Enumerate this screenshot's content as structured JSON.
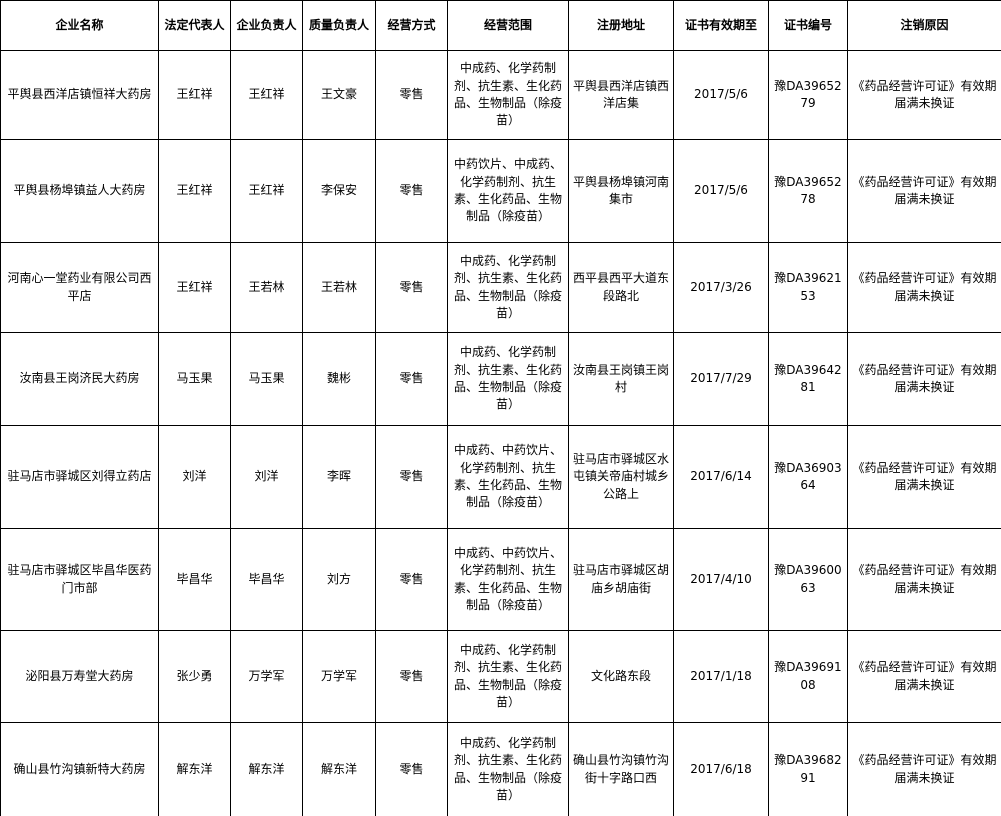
{
  "colors": {
    "border": "#000000",
    "background": "#ffffff",
    "text": "#000000"
  },
  "table": {
    "headers": [
      "企业名称",
      "法定代表人",
      "企业负责人",
      "质量负责人",
      "经营方式",
      "经营范围",
      "注册地址",
      "证书有效期至",
      "证书编号",
      "注销原因"
    ],
    "rows": [
      [
        "平舆县西洋店镇恒祥大药房",
        "王红祥",
        "王红祥",
        "王文豪",
        "零售",
        "中成药、化学药制剂、抗生素、生化药品、生物制品（除疫苗）",
        "平舆县西洋店镇西洋店集",
        "2017/5/6",
        "豫DA3965279",
        "《药品经营许可证》有效期届满未换证"
      ],
      [
        "平舆县杨埠镇益人大药房",
        "王红祥",
        "王红祥",
        "李保安",
        "零售",
        "中药饮片、中成药、化学药制剂、抗生素、生化药品、生物制品（除疫苗）",
        "平舆县杨埠镇河南集市",
        "2017/5/6",
        "豫DA3965278",
        "《药品经营许可证》有效期届满未换证"
      ],
      [
        "河南心一堂药业有限公司西平店",
        "王红祥",
        "王若林",
        "王若林",
        "零售",
        "中成药、化学药制剂、抗生素、生化药品、生物制品（除疫苗）",
        "西平县西平大道东段路北",
        "2017/3/26",
        "豫DA3962153",
        "《药品经营许可证》有效期届满未换证"
      ],
      [
        "汝南县王岗济民大药房",
        "马玉果",
        "马玉果",
        "魏彬",
        "零售",
        "中成药、化学药制剂、抗生素、生化药品、生物制品（除疫苗）",
        "汝南县王岗镇王岗村",
        "2017/7/29",
        "豫DA3964281",
        "《药品经营许可证》有效期届满未换证"
      ],
      [
        "驻马店市驿城区刘得立药店",
        "刘洋",
        "刘洋",
        "李晖",
        "零售",
        "中成药、中药饮片、化学药制剂、抗生素、生化药品、生物制品（除疫苗）",
        "驻马店市驿城区水屯镇关帝庙村城乡公路上",
        "2017/6/14",
        "豫DA3690364",
        "《药品经营许可证》有效期届满未换证"
      ],
      [
        "驻马店市驿城区毕昌华医药门市部",
        "毕昌华",
        "毕昌华",
        "刘方",
        "零售",
        "中成药、中药饮片、化学药制剂、抗生素、生化药品、生物制品（除疫苗）",
        "驻马店市驿城区胡庙乡胡庙街",
        "2017/4/10",
        "豫DA3960063",
        "《药品经营许可证》有效期届满未换证"
      ],
      [
        "泌阳县万寿堂大药房",
        "张少勇",
        "万学军",
        "万学军",
        "零售",
        "中成药、化学药制剂、抗生素、生化药品、生物制品（除疫苗）",
        "文化路东段",
        "2017/1/18",
        "豫DA3969108",
        "《药品经营许可证》有效期届满未换证"
      ],
      [
        "确山县竹沟镇新特大药房",
        "解东洋",
        "解东洋",
        "解东洋",
        "零售",
        "中成药、化学药制剂、抗生素、生化药品、生物制品（除疫苗）",
        "确山县竹沟镇竹沟街十字路口西",
        "2017/6/18",
        "豫DA3968291",
        "《药品经营许可证》有效期届满未换证"
      ]
    ]
  }
}
